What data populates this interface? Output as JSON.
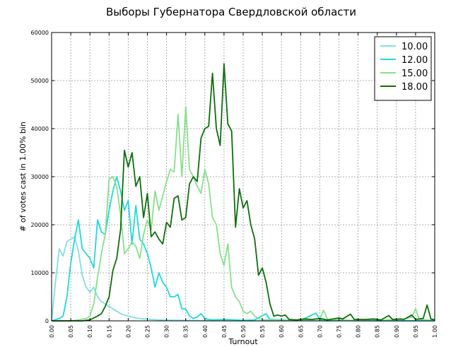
{
  "chart_data": {
    "type": "line",
    "title": "Выборы Губернатора Свердловской области",
    "xlabel": "Turnout",
    "ylabel": "# of votes cast in 1.00% bin",
    "xlim": [
      0,
      1
    ],
    "ylim": [
      0,
      60000
    ],
    "grid": true,
    "legend_position": "top-right",
    "x_ticks": [
      "0.00",
      "0.05",
      "0.10",
      "0.15",
      "0.20",
      "0.25",
      "0.30",
      "0.35",
      "0.40",
      "0.45",
      "0.50",
      "0.55",
      "0.60",
      "0.65",
      "0.70",
      "0.75",
      "0.80",
      "0.85",
      "0.90",
      "0.95",
      "1.00"
    ],
    "y_ticks": [
      "0",
      "10000",
      "20000",
      "30000",
      "40000",
      "50000",
      "60000"
    ],
    "series": [
      {
        "name": "10.00",
        "color": "#7fe0e0",
        "points": [
          [
            0.0,
            0
          ],
          [
            0.01,
            8000
          ],
          [
            0.02,
            15000
          ],
          [
            0.03,
            13500
          ],
          [
            0.04,
            16500
          ],
          [
            0.05,
            17000
          ],
          [
            0.06,
            17500
          ],
          [
            0.07,
            14500
          ],
          [
            0.08,
            9500
          ],
          [
            0.09,
            7000
          ],
          [
            0.1,
            6000
          ],
          [
            0.11,
            7000
          ],
          [
            0.12,
            5000
          ],
          [
            0.13,
            4000
          ],
          [
            0.14,
            3500
          ],
          [
            0.15,
            3000
          ],
          [
            0.16,
            2500
          ],
          [
            0.17,
            2000
          ],
          [
            0.18,
            1500
          ],
          [
            0.19,
            1200
          ],
          [
            0.2,
            1000
          ],
          [
            0.21,
            800
          ],
          [
            0.22,
            600
          ],
          [
            0.23,
            500
          ],
          [
            0.24,
            400
          ],
          [
            0.25,
            400
          ],
          [
            0.26,
            300
          ],
          [
            0.28,
            200
          ],
          [
            0.3,
            150
          ],
          [
            0.35,
            100
          ],
          [
            0.4,
            50
          ],
          [
            0.45,
            20
          ],
          [
            0.5,
            0
          ],
          [
            0.6,
            0
          ],
          [
            0.7,
            0
          ],
          [
            0.8,
            0
          ],
          [
            0.9,
            0
          ],
          [
            1.0,
            0
          ]
        ]
      },
      {
        "name": "12.00",
        "color": "#22d8d8",
        "points": [
          [
            0.0,
            0
          ],
          [
            0.02,
            500
          ],
          [
            0.03,
            1000
          ],
          [
            0.04,
            5000
          ],
          [
            0.05,
            12000
          ],
          [
            0.06,
            17000
          ],
          [
            0.07,
            21000
          ],
          [
            0.08,
            15000
          ],
          [
            0.09,
            14000
          ],
          [
            0.1,
            13000
          ],
          [
            0.11,
            11000
          ],
          [
            0.12,
            21000
          ],
          [
            0.13,
            18500
          ],
          [
            0.14,
            18000
          ],
          [
            0.15,
            23000
          ],
          [
            0.16,
            27000
          ],
          [
            0.17,
            30000
          ],
          [
            0.18,
            27000
          ],
          [
            0.19,
            23000
          ],
          [
            0.2,
            25000
          ],
          [
            0.21,
            16000
          ],
          [
            0.22,
            24000
          ],
          [
            0.23,
            17000
          ],
          [
            0.24,
            16000
          ],
          [
            0.25,
            14000
          ],
          [
            0.26,
            11000
          ],
          [
            0.27,
            7000
          ],
          [
            0.28,
            10000
          ],
          [
            0.29,
            8000
          ],
          [
            0.3,
            7000
          ],
          [
            0.31,
            5000
          ],
          [
            0.32,
            5000
          ],
          [
            0.33,
            5500
          ],
          [
            0.34,
            2500
          ],
          [
            0.35,
            2500
          ],
          [
            0.36,
            1000
          ],
          [
            0.37,
            500
          ],
          [
            0.38,
            800
          ],
          [
            0.39,
            1500
          ],
          [
            0.4,
            500
          ],
          [
            0.41,
            300
          ],
          [
            0.42,
            200
          ],
          [
            0.45,
            300
          ],
          [
            0.48,
            200
          ],
          [
            0.5,
            100
          ],
          [
            0.53,
            200
          ],
          [
            0.56,
            1500
          ],
          [
            0.57,
            300
          ],
          [
            0.6,
            200
          ],
          [
            0.65,
            100
          ],
          [
            0.69,
            1600
          ],
          [
            0.7,
            300
          ],
          [
            0.72,
            200
          ],
          [
            0.75,
            100
          ],
          [
            0.8,
            50
          ],
          [
            0.85,
            0
          ],
          [
            0.9,
            0
          ],
          [
            0.95,
            0
          ],
          [
            1.0,
            0
          ]
        ]
      },
      {
        "name": "15.00",
        "color": "#86e08c",
        "points": [
          [
            0.0,
            0
          ],
          [
            0.05,
            0
          ],
          [
            0.07,
            200
          ],
          [
            0.09,
            500
          ],
          [
            0.1,
            1000
          ],
          [
            0.11,
            3500
          ],
          [
            0.12,
            9000
          ],
          [
            0.13,
            14000
          ],
          [
            0.14,
            18000
          ],
          [
            0.15,
            29500
          ],
          [
            0.16,
            30000
          ],
          [
            0.17,
            28000
          ],
          [
            0.18,
            22000
          ],
          [
            0.19,
            14000
          ],
          [
            0.2,
            15000
          ],
          [
            0.21,
            16500
          ],
          [
            0.22,
            15500
          ],
          [
            0.23,
            13000
          ],
          [
            0.24,
            18000
          ],
          [
            0.25,
            21000
          ],
          [
            0.26,
            19000
          ],
          [
            0.27,
            27000
          ],
          [
            0.28,
            23000
          ],
          [
            0.29,
            26000
          ],
          [
            0.3,
            29000
          ],
          [
            0.31,
            31500
          ],
          [
            0.32,
            31000
          ],
          [
            0.33,
            43000
          ],
          [
            0.34,
            30000
          ],
          [
            0.35,
            44500
          ],
          [
            0.36,
            31500
          ],
          [
            0.37,
            30000
          ],
          [
            0.38,
            28000
          ],
          [
            0.39,
            26500
          ],
          [
            0.4,
            31500
          ],
          [
            0.41,
            28500
          ],
          [
            0.42,
            21500
          ],
          [
            0.43,
            20000
          ],
          [
            0.44,
            14000
          ],
          [
            0.45,
            11500
          ],
          [
            0.46,
            16000
          ],
          [
            0.47,
            7000
          ],
          [
            0.48,
            5000
          ],
          [
            0.49,
            4000
          ],
          [
            0.5,
            2000
          ],
          [
            0.51,
            1500
          ],
          [
            0.52,
            2000
          ],
          [
            0.53,
            1000
          ],
          [
            0.54,
            500
          ],
          [
            0.55,
            300
          ],
          [
            0.56,
            200
          ],
          [
            0.6,
            100
          ],
          [
            0.65,
            200
          ],
          [
            0.7,
            400
          ],
          [
            0.71,
            2200
          ],
          [
            0.72,
            300
          ],
          [
            0.74,
            200
          ],
          [
            0.75,
            300
          ],
          [
            0.78,
            100
          ],
          [
            0.8,
            200
          ],
          [
            0.85,
            100
          ],
          [
            0.88,
            200
          ],
          [
            0.9,
            300
          ],
          [
            0.91,
            200
          ],
          [
            0.94,
            800
          ],
          [
            0.95,
            2500
          ],
          [
            0.96,
            300
          ],
          [
            0.98,
            200
          ],
          [
            1.0,
            100
          ]
        ]
      },
      {
        "name": "18.00",
        "color": "#0c6e0c",
        "points": [
          [
            0.0,
            0
          ],
          [
            0.08,
            0
          ],
          [
            0.1,
            200
          ],
          [
            0.12,
            1000
          ],
          [
            0.13,
            1500
          ],
          [
            0.14,
            3000
          ],
          [
            0.15,
            5000
          ],
          [
            0.16,
            10500
          ],
          [
            0.17,
            13000
          ],
          [
            0.18,
            19000
          ],
          [
            0.19,
            35500
          ],
          [
            0.2,
            32000
          ],
          [
            0.21,
            35000
          ],
          [
            0.22,
            28000
          ],
          [
            0.23,
            30000
          ],
          [
            0.24,
            21500
          ],
          [
            0.25,
            26500
          ],
          [
            0.26,
            17500
          ],
          [
            0.27,
            18500
          ],
          [
            0.28,
            17000
          ],
          [
            0.29,
            16000
          ],
          [
            0.3,
            20500
          ],
          [
            0.31,
            19500
          ],
          [
            0.32,
            25500
          ],
          [
            0.33,
            26000
          ],
          [
            0.34,
            21000
          ],
          [
            0.35,
            21500
          ],
          [
            0.36,
            28500
          ],
          [
            0.37,
            30000
          ],
          [
            0.38,
            29000
          ],
          [
            0.39,
            38000
          ],
          [
            0.4,
            40000
          ],
          [
            0.41,
            40500
          ],
          [
            0.42,
            51500
          ],
          [
            0.43,
            40000
          ],
          [
            0.44,
            36500
          ],
          [
            0.45,
            53500
          ],
          [
            0.46,
            41000
          ],
          [
            0.47,
            39500
          ],
          [
            0.48,
            19500
          ],
          [
            0.49,
            27500
          ],
          [
            0.5,
            23500
          ],
          [
            0.51,
            25000
          ],
          [
            0.52,
            20000
          ],
          [
            0.53,
            17000
          ],
          [
            0.54,
            9500
          ],
          [
            0.55,
            11000
          ],
          [
            0.56,
            8000
          ],
          [
            0.57,
            3500
          ],
          [
            0.58,
            1000
          ],
          [
            0.59,
            1200
          ],
          [
            0.6,
            1000
          ],
          [
            0.61,
            1200
          ],
          [
            0.62,
            300
          ],
          [
            0.64,
            200
          ],
          [
            0.66,
            400
          ],
          [
            0.68,
            300
          ],
          [
            0.7,
            500
          ],
          [
            0.72,
            200
          ],
          [
            0.75,
            600
          ],
          [
            0.76,
            400
          ],
          [
            0.78,
            1400
          ],
          [
            0.79,
            300
          ],
          [
            0.82,
            300
          ],
          [
            0.84,
            400
          ],
          [
            0.86,
            200
          ],
          [
            0.88,
            1100
          ],
          [
            0.89,
            300
          ],
          [
            0.91,
            400
          ],
          [
            0.92,
            300
          ],
          [
            0.94,
            1200
          ],
          [
            0.95,
            300
          ],
          [
            0.97,
            500
          ],
          [
            0.98,
            3300
          ],
          [
            0.99,
            400
          ],
          [
            1.0,
            200
          ]
        ]
      }
    ]
  }
}
